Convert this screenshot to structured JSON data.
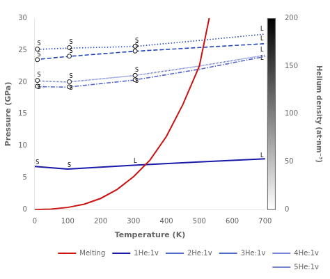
{
  "chart_data": {
    "type": "line",
    "xlabel": "Temperature (K)",
    "ylabel": "Pressure (GPa)",
    "xlim": [
      0,
      700
    ],
    "xticks": [
      0,
      100,
      200,
      300,
      400,
      500,
      600,
      700
    ],
    "ylim": [
      0,
      30
    ],
    "yticks": [
      0,
      5,
      10,
      15,
      20,
      25,
      30
    ],
    "grid": false,
    "legend": "lower right",
    "series": [
      {
        "name": "Melting",
        "color": "#cc1111",
        "line_style": "solid",
        "x": [
          0,
          50,
          100,
          150,
          200,
          250,
          300,
          350,
          400,
          450,
          500,
          530
        ],
        "values": [
          0.05,
          0.15,
          0.4,
          0.9,
          1.8,
          3.2,
          5.2,
          7.8,
          11.5,
          16.5,
          22.5,
          30.0
        ]
      },
      {
        "name": "1He:1v",
        "color": "#1a1aaa",
        "line_style": "solid",
        "x": [
          0,
          100,
          300,
          500,
          700
        ],
        "values": [
          6.8,
          6.4,
          7.0,
          7.5,
          8.0
        ]
      },
      {
        "name": "2He:1v",
        "color": "#2244bb",
        "line_style": "dashed",
        "x": [
          0,
          100,
          300,
          500,
          700
        ],
        "values": [
          23.5,
          24.0,
          24.8,
          25.4,
          26.0
        ]
      },
      {
        "name": "3He:1v",
        "color": "#2244bb",
        "line_style": "dotted",
        "x": [
          0,
          100,
          300,
          500,
          700
        ],
        "values": [
          25.1,
          25.3,
          25.55,
          26.5,
          27.5
        ]
      },
      {
        "name": "4He:1v",
        "color": "#5566cc",
        "line_style": "densely_dotted",
        "x": [
          0,
          100,
          300,
          500,
          700
        ],
        "values": [
          20.2,
          20.0,
          21.0,
          22.5,
          24.2
        ]
      },
      {
        "name": "5He:1v",
        "color": "#5566cc",
        "line_style": "dashdot",
        "x": [
          0,
          100,
          300,
          500,
          700
        ],
        "values": [
          19.3,
          19.2,
          20.3,
          22.0,
          24.0
        ]
      },
      {
        "type": "scatter",
        "marker": "circle",
        "color": "#000000",
        "x": [
          8,
          105,
          305,
          8,
          105,
          305,
          8,
          105,
          305,
          8,
          105,
          305
        ],
        "values": [
          23.5,
          24.05,
          24.85,
          25.15,
          25.38,
          25.6,
          20.25,
          20.05,
          21.05,
          19.35,
          19.25,
          20.35
        ]
      }
    ],
    "annotations": [
      {
        "x": 8,
        "y": 6.95,
        "text": "S"
      },
      {
        "x": 105,
        "y": 6.5,
        "text": "S"
      },
      {
        "x": 305,
        "y": 7.18,
        "text": "L"
      },
      {
        "x": 690,
        "y": 8.08,
        "text": "L"
      },
      {
        "x": 13,
        "y": 23.85,
        "text": "S"
      },
      {
        "x": 110,
        "y": 24.4,
        "text": "S"
      },
      {
        "x": 310,
        "y": 25.2,
        "text": "S"
      },
      {
        "x": 690,
        "y": 26.35,
        "text": "L"
      },
      {
        "x": 13,
        "y": 25.5,
        "text": "S"
      },
      {
        "x": 110,
        "y": 25.73,
        "text": "S"
      },
      {
        "x": 310,
        "y": 25.95,
        "text": "S"
      },
      {
        "x": 690,
        "y": 27.85,
        "text": "L"
      },
      {
        "x": 13,
        "y": 20.6,
        "text": "S"
      },
      {
        "x": 110,
        "y": 20.4,
        "text": "S"
      },
      {
        "x": 310,
        "y": 21.4,
        "text": "S"
      },
      {
        "x": 690,
        "y": 24.55,
        "text": "L"
      },
      {
        "x": 13,
        "y": 18.65,
        "text": "S"
      },
      {
        "x": 110,
        "y": 18.55,
        "text": "S"
      },
      {
        "x": 310,
        "y": 19.65,
        "text": "S"
      },
      {
        "x": 690,
        "y": 23.3,
        "text": "L"
      }
    ],
    "colorbar": {
      "label": "Helium density (at·nm⁻³)",
      "lim": [
        0,
        200
      ],
      "ticks": [
        0,
        50,
        100,
        150,
        200
      ]
    }
  }
}
